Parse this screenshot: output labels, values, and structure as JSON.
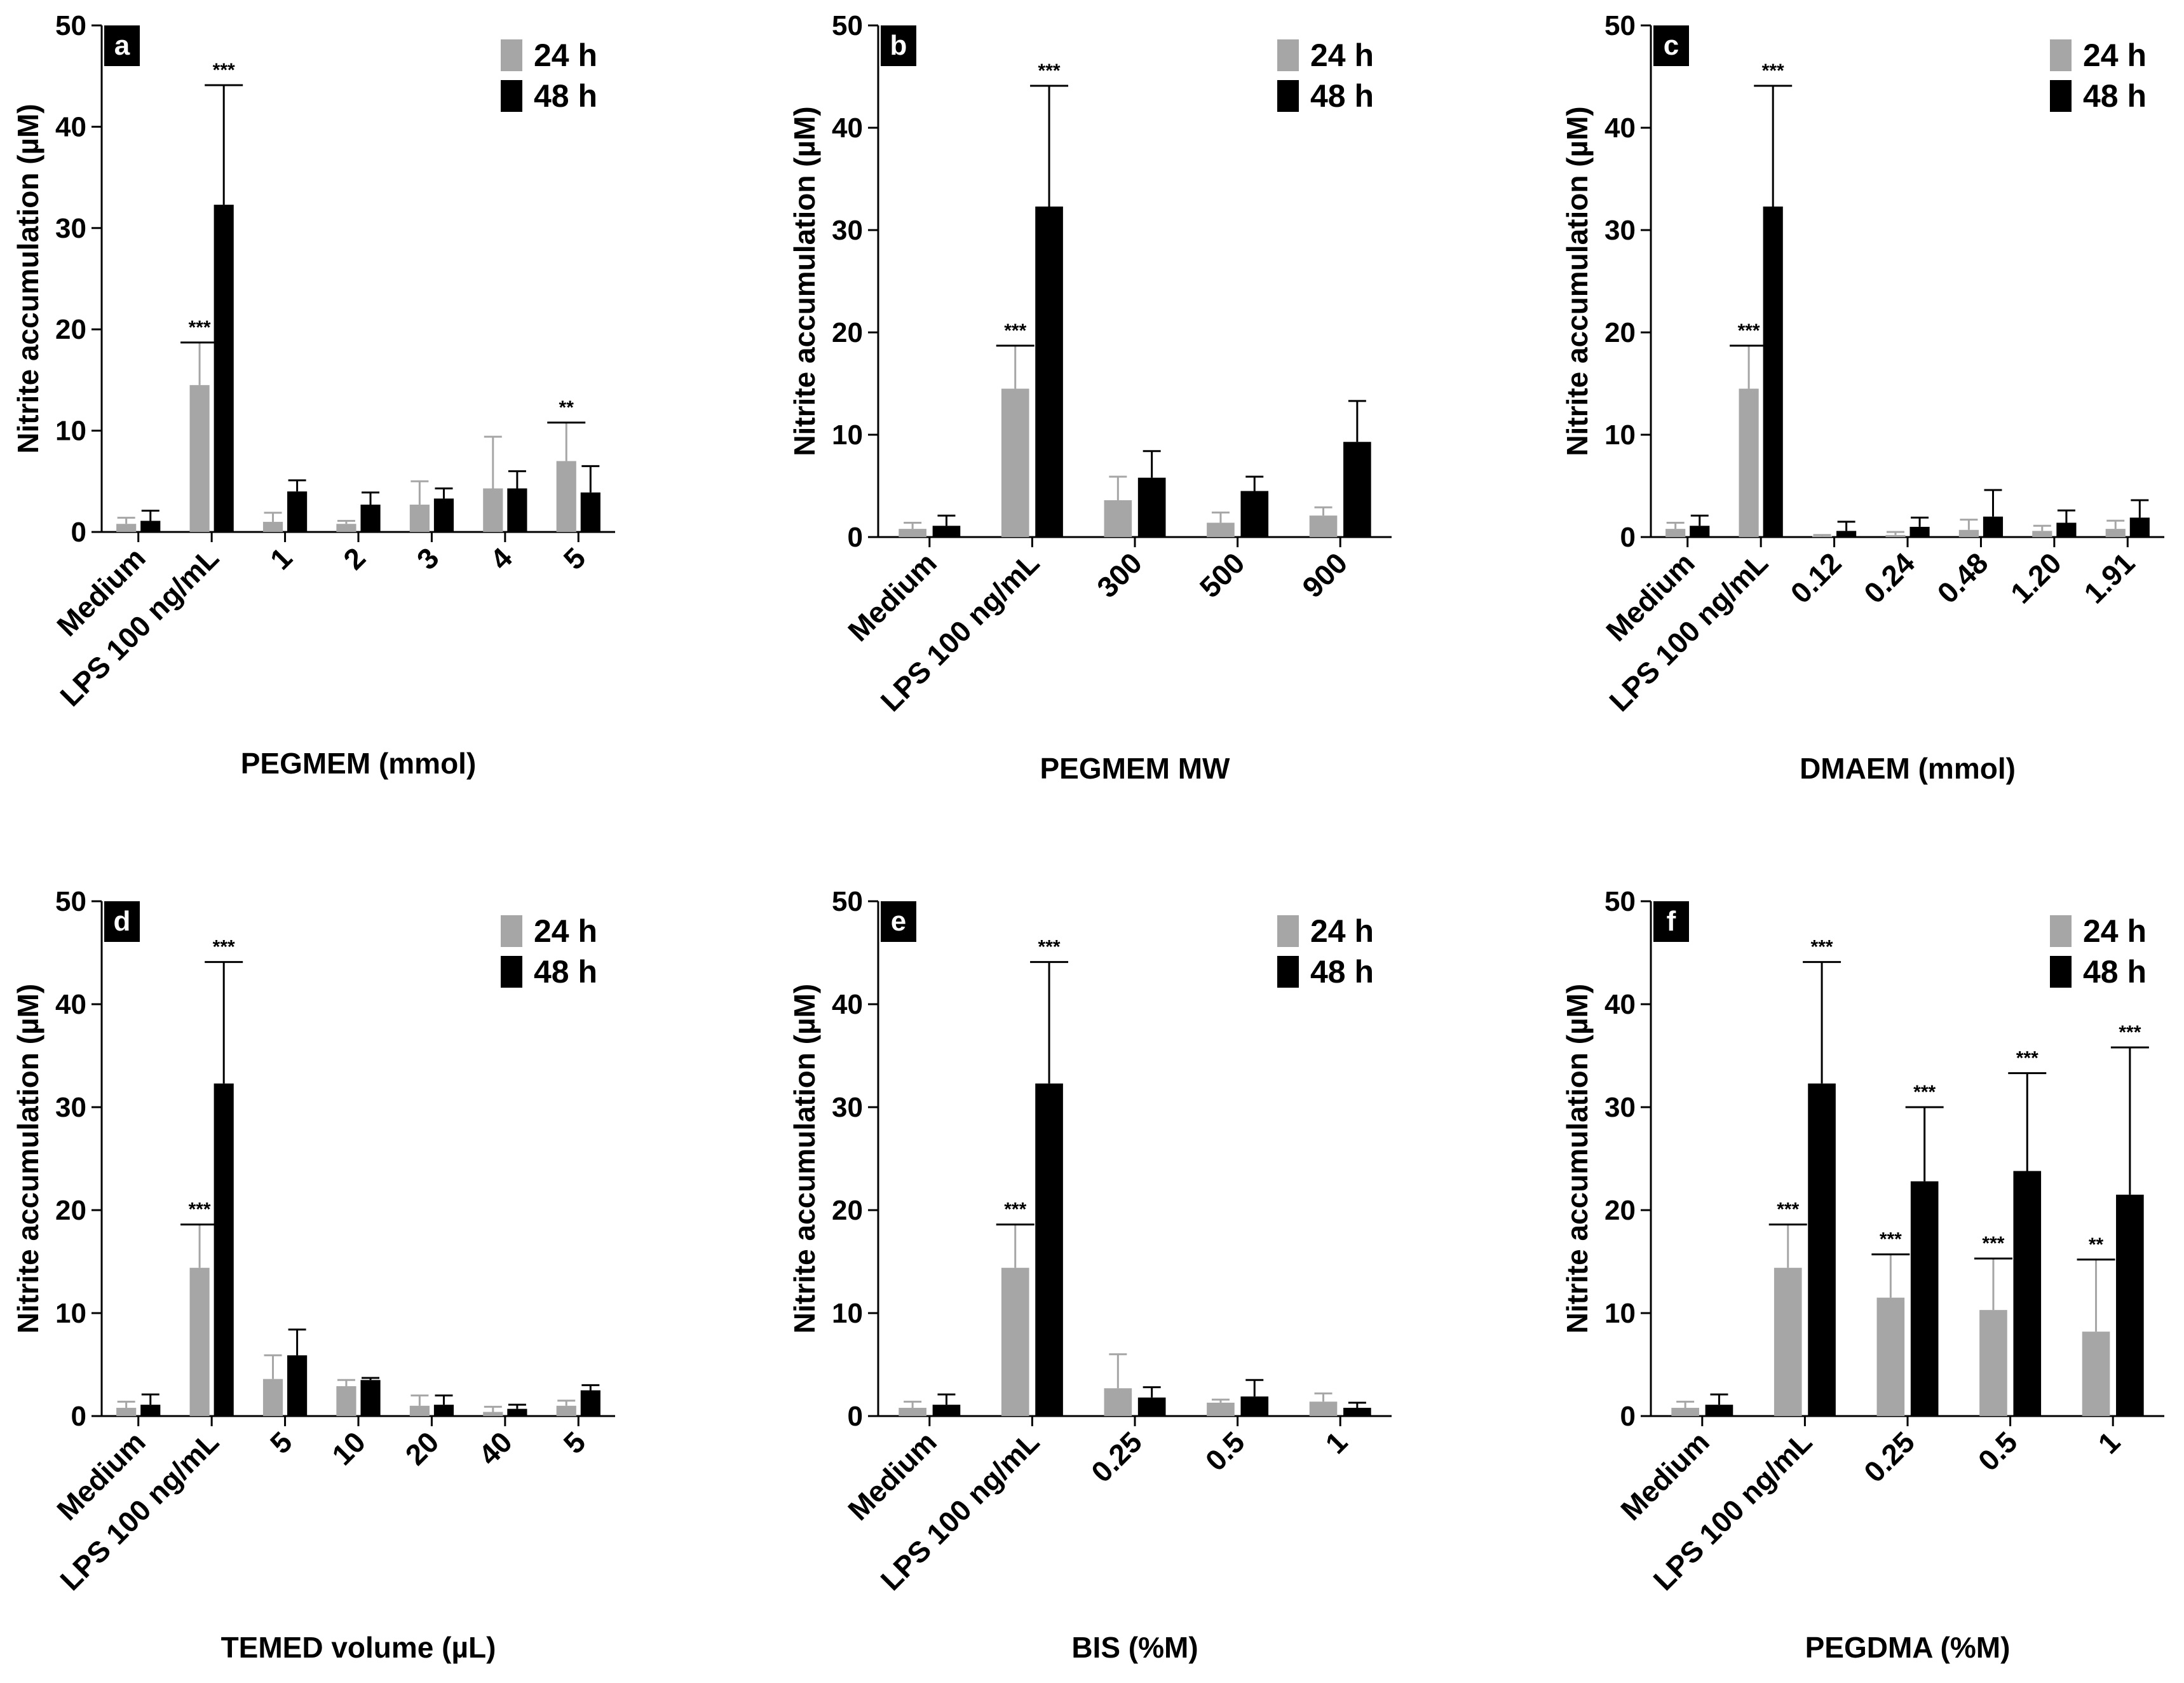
{
  "chart_data": [
    {
      "type": "bar",
      "panel": "a",
      "title": "",
      "xlabel": "PEGMEM (mmol)",
      "ylabel": "Nitrite accumulation (µM)",
      "ylim": [
        0,
        50
      ],
      "yticks": [
        0,
        10,
        20,
        30,
        40,
        50
      ],
      "legend_position": "top-right",
      "categories": [
        "Medium",
        "LPS 100 ng/mL",
        "1",
        "2",
        "3",
        "4",
        "5"
      ],
      "series": [
        {
          "name": "24 h",
          "color": "#a6a6a6",
          "values": [
            0.8,
            14.5,
            1.0,
            0.8,
            2.7,
            4.3,
            7.0
          ],
          "errors": [
            0.6,
            4.2,
            0.9,
            0.3,
            2.3,
            5.1,
            3.8
          ],
          "significance": [
            "",
            "***",
            "",
            "",
            "",
            "",
            "**"
          ]
        },
        {
          "name": "48 h",
          "color": "#000000",
          "values": [
            1.1,
            32.3,
            4.0,
            2.7,
            3.3,
            4.3,
            3.9
          ],
          "errors": [
            1.0,
            11.8,
            1.1,
            1.2,
            1.0,
            1.7,
            2.6
          ],
          "significance": [
            "",
            "***",
            "",
            "",
            "",
            "",
            ""
          ]
        }
      ]
    },
    {
      "type": "bar",
      "panel": "b",
      "title": "",
      "xlabel": "PEGMEM MW",
      "ylabel": "Nitrite accumulation (µM)",
      "ylim": [
        0,
        50
      ],
      "yticks": [
        0,
        10,
        20,
        30,
        40,
        50
      ],
      "legend_position": "top-right",
      "categories": [
        "Medium",
        "LPS 100 ng/mL",
        "300",
        "500",
        "900"
      ],
      "series": [
        {
          "name": "24 h",
          "color": "#a6a6a6",
          "values": [
            0.8,
            14.5,
            3.6,
            1.4,
            2.1
          ],
          "errors": [
            0.6,
            4.2,
            2.3,
            1.0,
            0.8
          ],
          "significance": [
            "",
            "***",
            "",
            "",
            ""
          ]
        },
        {
          "name": "48 h",
          "color": "#000000",
          "values": [
            1.1,
            32.3,
            5.8,
            4.5,
            9.3
          ],
          "errors": [
            1.0,
            11.8,
            2.6,
            1.4,
            4.0
          ],
          "significance": [
            "",
            "***",
            "",
            "",
            ""
          ]
        }
      ]
    },
    {
      "type": "bar",
      "panel": "c",
      "title": "",
      "xlabel": "DMAEM (mmol)",
      "ylabel": "Nitrite accumulation (µM)",
      "ylim": [
        0,
        50
      ],
      "yticks": [
        0,
        10,
        20,
        30,
        40,
        50
      ],
      "legend_position": "top-right",
      "categories": [
        "Medium",
        "LPS 100 ng/mL",
        "0.12",
        "0.24",
        "0.48",
        "1.20",
        "1.91"
      ],
      "series": [
        {
          "name": "24 h",
          "color": "#a6a6a6",
          "values": [
            0.8,
            14.5,
            0.1,
            0.2,
            0.7,
            0.6,
            0.8
          ],
          "errors": [
            0.6,
            4.2,
            0.1,
            0.3,
            1.0,
            0.5,
            0.8
          ],
          "significance": [
            "",
            "***",
            "",
            "",
            "",
            "",
            ""
          ]
        },
        {
          "name": "48 h",
          "color": "#000000",
          "values": [
            1.1,
            32.3,
            0.6,
            1.0,
            2.0,
            1.4,
            1.9
          ],
          "errors": [
            1.0,
            11.8,
            0.9,
            0.9,
            2.6,
            1.2,
            1.7
          ],
          "significance": [
            "",
            "***",
            "",
            "",
            "",
            "",
            ""
          ]
        }
      ]
    },
    {
      "type": "bar",
      "panel": "d",
      "title": "",
      "xlabel": "TEMED volume (µL)",
      "ylabel": "Nitrite accumulation (µM)",
      "ylim": [
        0,
        50
      ],
      "yticks": [
        0,
        10,
        20,
        30,
        40,
        50
      ],
      "legend_position": "top-right",
      "categories": [
        "Medium",
        "LPS 100 ng/mL",
        "5",
        "10",
        "20",
        "40",
        "5"
      ],
      "series": [
        {
          "name": "24 h",
          "color": "#a6a6a6",
          "values": [
            0.8,
            14.4,
            3.6,
            2.9,
            1.0,
            0.4,
            1.0
          ],
          "errors": [
            0.6,
            4.2,
            2.3,
            0.6,
            1.0,
            0.5,
            0.5
          ],
          "significance": [
            "",
            "***",
            "",
            "",
            "",
            "",
            ""
          ]
        },
        {
          "name": "48 h",
          "color": "#000000",
          "values": [
            1.1,
            32.3,
            5.9,
            3.5,
            1.1,
            0.7,
            2.5
          ],
          "errors": [
            1.0,
            11.8,
            2.5,
            0.2,
            0.9,
            0.4,
            0.5
          ],
          "significance": [
            "",
            "***",
            "",
            "",
            "",
            "",
            ""
          ]
        }
      ]
    },
    {
      "type": "bar",
      "panel": "e",
      "title": "",
      "xlabel": "BIS (%M)",
      "ylabel": "Nitrite accumulation (µM)",
      "ylim": [
        0,
        50
      ],
      "yticks": [
        0,
        10,
        20,
        30,
        40,
        50
      ],
      "legend_position": "top-right",
      "categories": [
        "Medium",
        "LPS 100 ng/mL",
        "0.25",
        "0.5",
        "1"
      ],
      "series": [
        {
          "name": "24 h",
          "color": "#a6a6a6",
          "values": [
            0.8,
            14.4,
            2.7,
            1.3,
            1.4
          ],
          "errors": [
            0.6,
            4.2,
            3.3,
            0.3,
            0.8
          ],
          "significance": [
            "",
            "***",
            "",
            "",
            ""
          ]
        },
        {
          "name": "48 h",
          "color": "#000000",
          "values": [
            1.1,
            32.3,
            1.8,
            1.9,
            0.8
          ],
          "errors": [
            1.0,
            11.8,
            1.0,
            1.6,
            0.5
          ],
          "significance": [
            "",
            "***",
            "",
            "",
            ""
          ]
        }
      ]
    },
    {
      "type": "bar",
      "panel": "f",
      "title": "",
      "xlabel": "PEGDMA (%M)",
      "ylabel": "Nitrite accumulation (µM)",
      "ylim": [
        0,
        50
      ],
      "yticks": [
        0,
        10,
        20,
        30,
        40,
        50
      ],
      "legend_position": "top-right",
      "categories": [
        "Medium",
        "LPS 100 ng/mL",
        "0.25",
        "0.5",
        "1"
      ],
      "series": [
        {
          "name": "24 h",
          "color": "#a6a6a6",
          "values": [
            0.8,
            14.4,
            11.5,
            10.3,
            8.2
          ],
          "errors": [
            0.6,
            4.2,
            4.2,
            5.0,
            7.0
          ],
          "significance": [
            "",
            "***",
            "***",
            "***",
            "**"
          ]
        },
        {
          "name": "48 h",
          "color": "#000000",
          "values": [
            1.1,
            32.3,
            22.8,
            23.8,
            21.5
          ],
          "errors": [
            1.0,
            11.8,
            7.2,
            9.5,
            14.3
          ],
          "significance": [
            "",
            "***",
            "***",
            "***",
            "***"
          ]
        }
      ]
    }
  ]
}
